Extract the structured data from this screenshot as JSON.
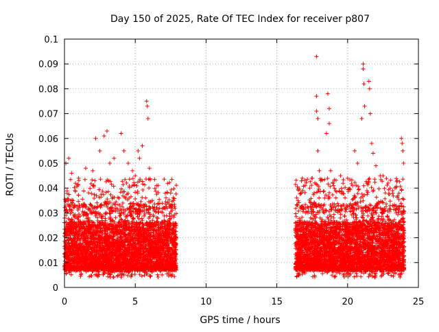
{
  "chart_data": {
    "type": "scatter",
    "title": "Day 150 of 2025, Rate Of TEC Index for receiver p807",
    "xlabel": "GPS time / hours",
    "ylabel": "ROTI / TECUs",
    "xlim": [
      0,
      25
    ],
    "ylim": [
      0,
      0.1
    ],
    "xticks": [
      0,
      5,
      10,
      15,
      20,
      25
    ],
    "xtick_labels": [
      "0",
      "5",
      "10",
      "15",
      "20",
      "25"
    ],
    "yticks": [
      0,
      0.01,
      0.02,
      0.03,
      0.04,
      0.05,
      0.06,
      0.07,
      0.08,
      0.09,
      0.1
    ],
    "ytick_labels": [
      "0",
      "0.01",
      "0.02",
      "0.03",
      "0.04",
      "0.05",
      "0.06",
      "0.07",
      "0.08",
      "0.09",
      "0.1"
    ],
    "grid": true,
    "marker": "+",
    "marker_color": "#ff0000",
    "series": [
      {
        "name": "p807",
        "segments": [
          {
            "x_start": 0.0,
            "x_end": 7.9,
            "typical_range": [
              0.004,
              0.03
            ]
          },
          {
            "x_start": 16.3,
            "x_end": 24.0,
            "typical_range": [
              0.004,
              0.03
            ]
          }
        ],
        "points": [
          [
            0.1,
            0.05
          ],
          [
            0.3,
            0.052
          ],
          [
            0.5,
            0.046
          ],
          [
            0.6,
            0.035
          ],
          [
            1.0,
            0.044
          ],
          [
            1.5,
            0.048
          ],
          [
            2.0,
            0.047
          ],
          [
            2.2,
            0.06
          ],
          [
            2.5,
            0.055
          ],
          [
            2.8,
            0.061
          ],
          [
            3.0,
            0.063
          ],
          [
            3.2,
            0.05
          ],
          [
            3.5,
            0.052
          ],
          [
            4.0,
            0.062
          ],
          [
            4.2,
            0.055
          ],
          [
            4.5,
            0.05
          ],
          [
            4.8,
            0.047
          ],
          [
            5.0,
            0.045
          ],
          [
            5.2,
            0.055
          ],
          [
            5.3,
            0.052
          ],
          [
            5.5,
            0.057
          ],
          [
            5.8,
            0.075
          ],
          [
            5.85,
            0.073
          ],
          [
            5.9,
            0.068
          ],
          [
            6.0,
            0.048
          ],
          [
            6.5,
            0.041
          ],
          [
            7.0,
            0.032
          ],
          [
            7.5,
            0.038
          ],
          [
            7.7,
            0.035
          ],
          [
            16.8,
            0.044
          ],
          [
            17.2,
            0.03
          ],
          [
            17.5,
            0.044
          ],
          [
            17.8,
            0.093
          ],
          [
            17.8,
            0.077
          ],
          [
            17.8,
            0.071
          ],
          [
            17.9,
            0.068
          ],
          [
            17.9,
            0.055
          ],
          [
            18.0,
            0.047
          ],
          [
            18.1,
            0.043
          ],
          [
            18.5,
            0.062
          ],
          [
            18.6,
            0.078
          ],
          [
            18.7,
            0.072
          ],
          [
            18.7,
            0.066
          ],
          [
            18.8,
            0.047
          ],
          [
            19.0,
            0.041
          ],
          [
            19.5,
            0.045
          ],
          [
            20.0,
            0.044
          ],
          [
            20.5,
            0.055
          ],
          [
            20.7,
            0.05
          ],
          [
            21.0,
            0.068
          ],
          [
            21.1,
            0.09
          ],
          [
            21.1,
            0.088
          ],
          [
            21.15,
            0.082
          ],
          [
            21.2,
            0.073
          ],
          [
            21.5,
            0.083
          ],
          [
            21.55,
            0.08
          ],
          [
            21.6,
            0.07
          ],
          [
            21.7,
            0.058
          ],
          [
            21.8,
            0.054
          ],
          [
            22.0,
            0.049
          ],
          [
            22.3,
            0.045
          ],
          [
            22.5,
            0.045
          ],
          [
            23.0,
            0.04
          ],
          [
            23.5,
            0.043
          ],
          [
            23.8,
            0.06
          ],
          [
            23.85,
            0.058
          ],
          [
            23.9,
            0.055
          ],
          [
            23.95,
            0.05
          ]
        ]
      }
    ]
  }
}
